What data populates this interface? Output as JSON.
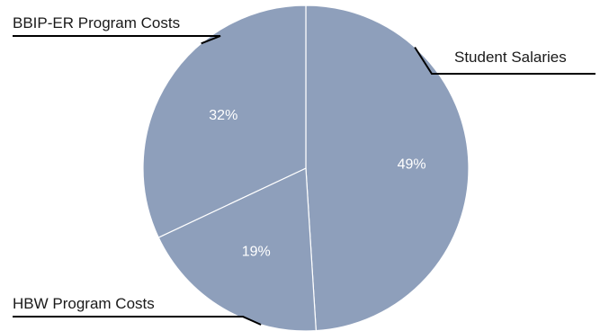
{
  "chart_data": {
    "type": "pie",
    "slices": [
      {
        "label": "Student Salaries",
        "value": 49,
        "percent_label": "49%"
      },
      {
        "label": "HBW Program Costs",
        "value": 19,
        "percent_label": "19%"
      },
      {
        "label": "BBIP-ER Program Costs",
        "value": 32,
        "percent_label": "32%"
      }
    ],
    "colors": {
      "slice_fill": "#8e9fbb",
      "slice_border": "#ffffff",
      "leader": "#000000"
    },
    "legend": "none"
  }
}
